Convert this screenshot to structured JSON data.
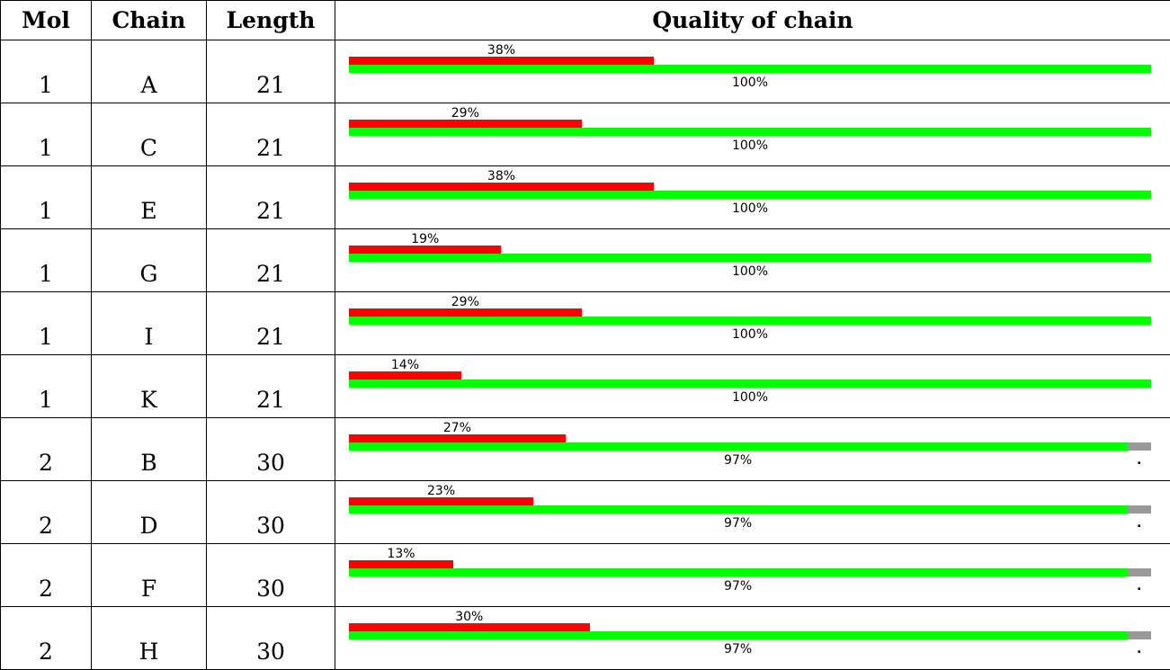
{
  "table": {
    "headers": {
      "mol": "Mol",
      "chain": "Chain",
      "length": "Length",
      "quality": "Quality of chain"
    },
    "colors": {
      "outlier": "#ff0000",
      "good": "#00ff00",
      "missing": "#999999"
    },
    "rows": [
      {
        "mol": "1",
        "chain": "A",
        "length": "21",
        "outlier_pct": 38,
        "outlier_label": "38%",
        "good_pct": 100,
        "good_label": "100%",
        "missing_pct": 0
      },
      {
        "mol": "1",
        "chain": "C",
        "length": "21",
        "outlier_pct": 29,
        "outlier_label": "29%",
        "good_pct": 100,
        "good_label": "100%",
        "missing_pct": 0
      },
      {
        "mol": "1",
        "chain": "E",
        "length": "21",
        "outlier_pct": 38,
        "outlier_label": "38%",
        "good_pct": 100,
        "good_label": "100%",
        "missing_pct": 0
      },
      {
        "mol": "1",
        "chain": "G",
        "length": "21",
        "outlier_pct": 19,
        "outlier_label": "19%",
        "good_pct": 100,
        "good_label": "100%",
        "missing_pct": 0
      },
      {
        "mol": "1",
        "chain": "I",
        "length": "21",
        "outlier_pct": 29,
        "outlier_label": "29%",
        "good_pct": 100,
        "good_label": "100%",
        "missing_pct": 0
      },
      {
        "mol": "1",
        "chain": "K",
        "length": "21",
        "outlier_pct": 14,
        "outlier_label": "14%",
        "good_pct": 100,
        "good_label": "100%",
        "missing_pct": 0
      },
      {
        "mol": "2",
        "chain": "B",
        "length": "30",
        "outlier_pct": 27,
        "outlier_label": "27%",
        "good_pct": 97,
        "good_label": "97%",
        "missing_pct": 3,
        "missing_label": "."
      },
      {
        "mol": "2",
        "chain": "D",
        "length": "30",
        "outlier_pct": 23,
        "outlier_label": "23%",
        "good_pct": 97,
        "good_label": "97%",
        "missing_pct": 3,
        "missing_label": "."
      },
      {
        "mol": "2",
        "chain": "F",
        "length": "30",
        "outlier_pct": 13,
        "outlier_label": "13%",
        "good_pct": 97,
        "good_label": "97%",
        "missing_pct": 3,
        "missing_label": "."
      },
      {
        "mol": "2",
        "chain": "H",
        "length": "30",
        "outlier_pct": 30,
        "outlier_label": "30%",
        "good_pct": 97,
        "good_label": "97%",
        "missing_pct": 3,
        "missing_label": "."
      }
    ]
  }
}
